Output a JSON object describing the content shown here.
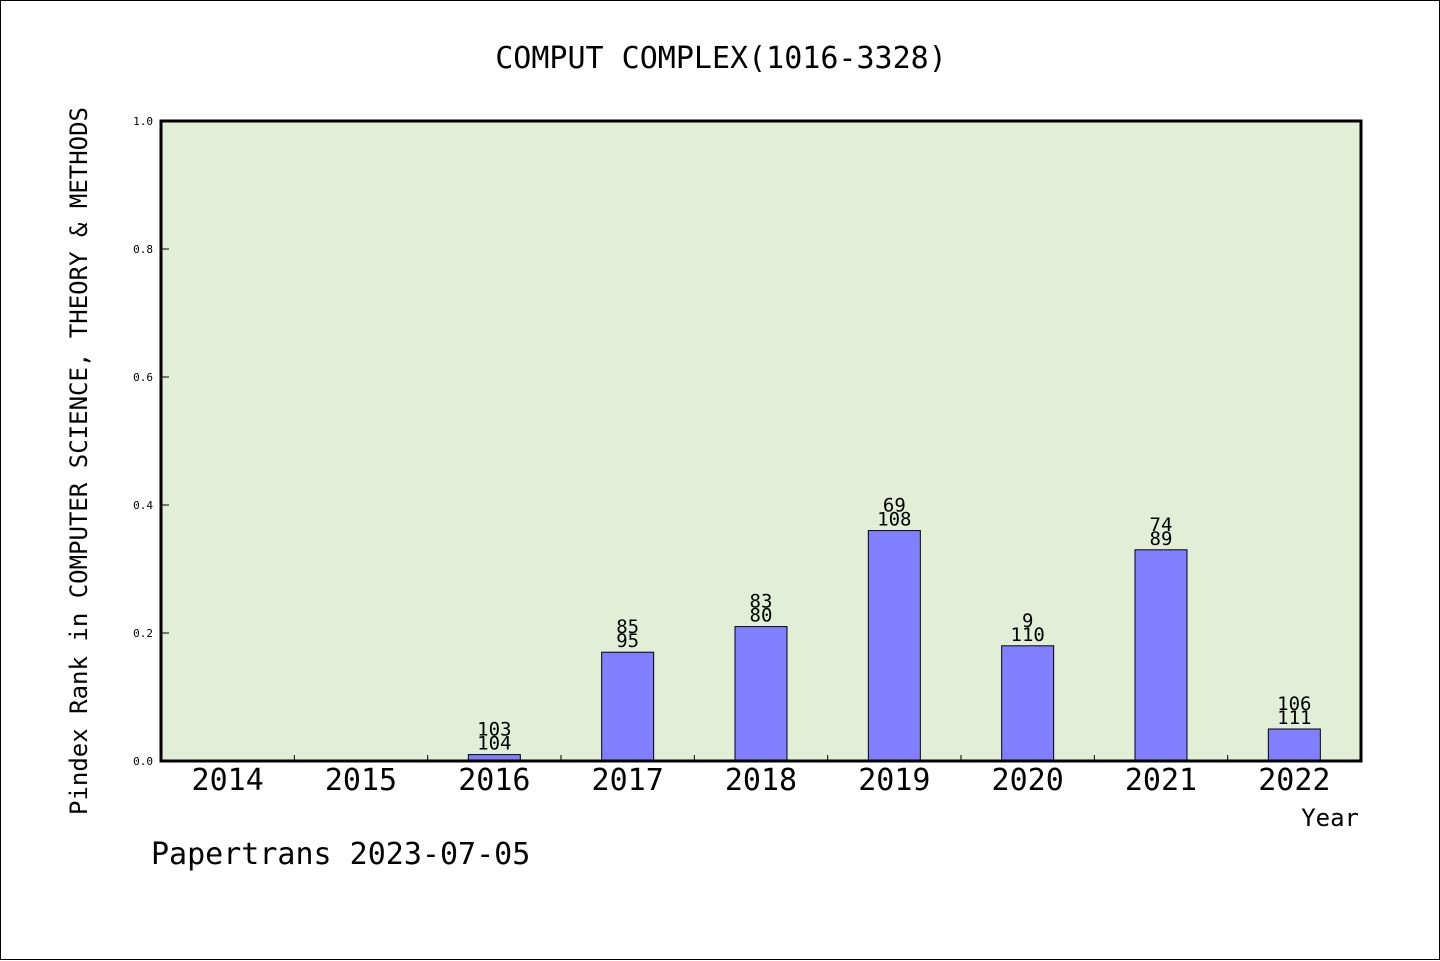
{
  "chart_data": {
    "type": "bar",
    "title": "COMPUT COMPLEX(1016-3328)",
    "xlabel": "Year",
    "ylabel": "Pindex Rank in COMPUTER SCIENCE, THEORY & METHODS",
    "watermark": "Papertrans 2023-07-05",
    "categories": [
      "2014",
      "2015",
      "2016",
      "2017",
      "2018",
      "2019",
      "2020",
      "2021",
      "2022"
    ],
    "values": [
      0,
      0,
      0.01,
      0.17,
      0.21,
      0.36,
      0.18,
      0.33,
      0.05
    ],
    "annotations": [
      {
        "top": "",
        "bottom": ""
      },
      {
        "top": "",
        "bottom": ""
      },
      {
        "top": "103",
        "bottom": "104"
      },
      {
        "top": "85",
        "bottom": "95"
      },
      {
        "top": "83",
        "bottom": "80"
      },
      {
        "top": "69",
        "bottom": "108"
      },
      {
        "top": "9",
        "bottom": "110"
      },
      {
        "top": "74",
        "bottom": "89"
      },
      {
        "top": "106",
        "bottom": "111"
      }
    ],
    "ylim": [
      0,
      1.0
    ],
    "yticks": [
      "0.0",
      "0.2",
      "0.4",
      "0.6",
      "0.8",
      "1.0"
    ],
    "colors": {
      "plot_bg": "#e2efd6",
      "bar": "#8080ff",
      "bar_edge": "#000000"
    },
    "grid": false,
    "legend": "none"
  }
}
